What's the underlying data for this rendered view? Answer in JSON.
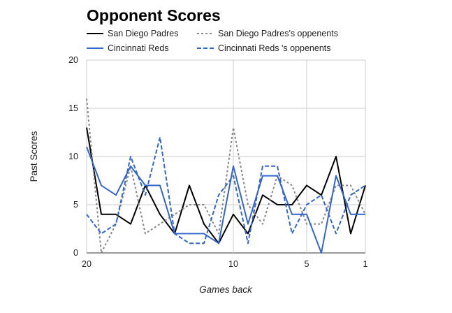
{
  "chart_data": {
    "type": "line",
    "title": "Opponent Scores",
    "xlabel": "Games back",
    "ylabel": "Past Scores",
    "x": [
      20,
      19,
      18,
      17,
      16,
      15,
      14,
      13,
      12,
      11,
      10,
      9,
      8,
      7,
      6,
      5,
      4,
      3,
      2,
      1
    ],
    "xlim": [
      20,
      1
    ],
    "x_ticks": [
      "20",
      "10",
      "5",
      "1"
    ],
    "x_tick_values": [
      20,
      10,
      5,
      1
    ],
    "ylim": [
      0,
      20
    ],
    "y_ticks": [
      "0",
      "5",
      "10",
      "15",
      "20"
    ],
    "y_tick_values": [
      0,
      5,
      10,
      15,
      20
    ],
    "grid": true,
    "legend_position": "top",
    "series": [
      {
        "name": "San Diego Padres",
        "color": "#000000",
        "dash": "solid",
        "values": [
          13,
          4,
          4,
          3,
          7,
          4,
          2,
          7,
          3,
          1,
          4,
          2,
          6,
          5,
          5,
          7,
          6,
          10,
          2,
          7
        ]
      },
      {
        "name": "San Diego Padres's oppenents",
        "color": "#888888",
        "dash": "dotted",
        "values": [
          16,
          0,
          3,
          9,
          2,
          3,
          4,
          5,
          5,
          2,
          13,
          5,
          3,
          8,
          7,
          3,
          3,
          7,
          7,
          4
        ]
      },
      {
        "name": "Cincinnati Reds",
        "color": "#3366cc",
        "dash": "solid",
        "values": [
          11,
          7,
          6,
          9,
          7,
          7,
          2,
          2,
          2,
          1,
          9,
          3,
          8,
          8,
          4,
          4,
          0,
          8,
          4,
          4
        ]
      },
      {
        "name": "Cincinnati Reds 's oppenents",
        "color": "#3366cc",
        "dash": "dashed",
        "values": [
          4,
          2,
          3,
          10,
          6,
          12,
          2,
          1,
          1,
          6,
          8,
          1,
          9,
          9,
          2,
          5,
          6,
          2,
          6,
          7
        ]
      }
    ]
  }
}
